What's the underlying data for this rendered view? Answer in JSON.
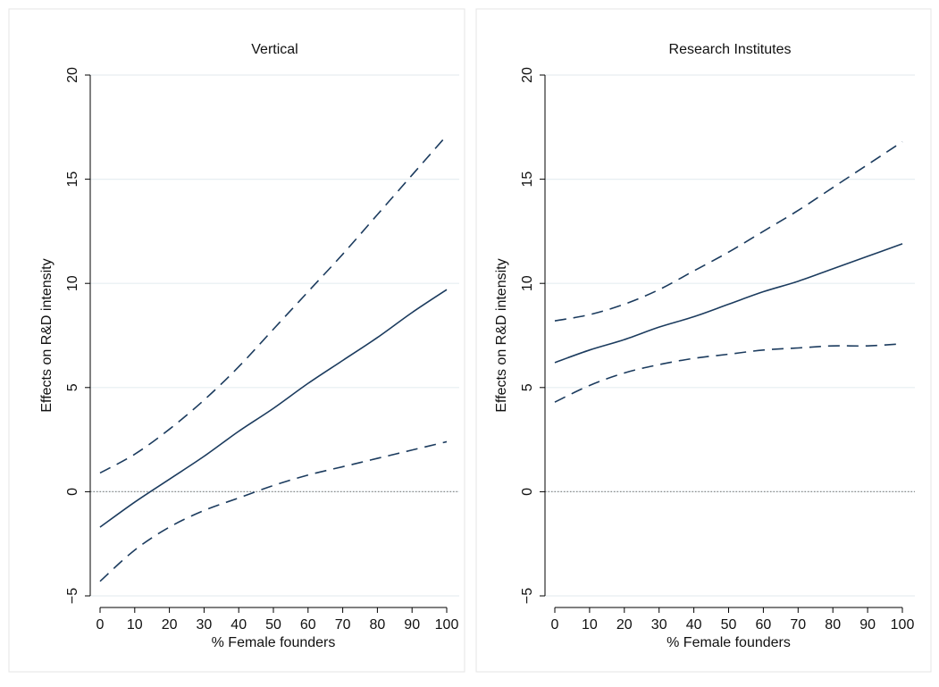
{
  "chart_data": [
    {
      "type": "line",
      "title": "Vertical",
      "xlabel": "% Female founders",
      "ylabel": "Effects on R&D intensity",
      "xlim": [
        0,
        100
      ],
      "ylim": [
        -5,
        20
      ],
      "xticks": [
        0,
        10,
        20,
        30,
        40,
        50,
        60,
        70,
        80,
        90,
        100
      ],
      "yticks": [
        -5,
        0,
        5,
        10,
        15,
        20
      ],
      "grid": true,
      "reference_line_y": 0,
      "x": [
        0,
        10,
        20,
        30,
        40,
        50,
        60,
        70,
        80,
        90,
        100
      ],
      "series": [
        {
          "role": "estimate",
          "style": "solid",
          "values": [
            -1.7,
            -0.5,
            0.6,
            1.7,
            2.9,
            4.0,
            5.2,
            6.3,
            7.4,
            8.6,
            9.7
          ]
        },
        {
          "role": "upper-ci",
          "style": "dashed",
          "values": [
            0.9,
            1.8,
            3.0,
            4.4,
            6.0,
            7.8,
            9.6,
            11.4,
            13.3,
            15.2,
            17.1
          ]
        },
        {
          "role": "lower-ci",
          "style": "dashed",
          "values": [
            -4.3,
            -2.8,
            -1.7,
            -0.9,
            -0.3,
            0.3,
            0.8,
            1.2,
            1.6,
            2.0,
            2.4
          ]
        }
      ]
    },
    {
      "type": "line",
      "title": "Research Institutes",
      "xlabel": "% Female founders",
      "ylabel": "Effects on R&D intensity",
      "xlim": [
        0,
        100
      ],
      "ylim": [
        -5,
        20
      ],
      "xticks": [
        0,
        10,
        20,
        30,
        40,
        50,
        60,
        70,
        80,
        90,
        100
      ],
      "yticks": [
        -5,
        0,
        5,
        10,
        15,
        20
      ],
      "grid": true,
      "reference_line_y": 0,
      "x": [
        0,
        10,
        20,
        30,
        40,
        50,
        60,
        70,
        80,
        90,
        100
      ],
      "series": [
        {
          "role": "estimate",
          "style": "solid",
          "values": [
            6.2,
            6.8,
            7.3,
            7.9,
            8.4,
            9.0,
            9.6,
            10.1,
            10.7,
            11.3,
            11.9
          ]
        },
        {
          "role": "upper-ci",
          "style": "dashed",
          "values": [
            8.2,
            8.5,
            9.0,
            9.7,
            10.6,
            11.5,
            12.5,
            13.5,
            14.6,
            15.7,
            16.8
          ]
        },
        {
          "role": "lower-ci",
          "style": "dashed",
          "values": [
            4.3,
            5.1,
            5.7,
            6.1,
            6.4,
            6.6,
            6.8,
            6.9,
            7.0,
            7.0,
            7.1
          ]
        }
      ]
    }
  ],
  "colors": {
    "line": "#1b3b5e",
    "grid": "#e6eef1",
    "reference_line": "#8c8c8c",
    "axis": "#000000",
    "panel_border": "#e4e4e4",
    "background": "#ffffff"
  }
}
